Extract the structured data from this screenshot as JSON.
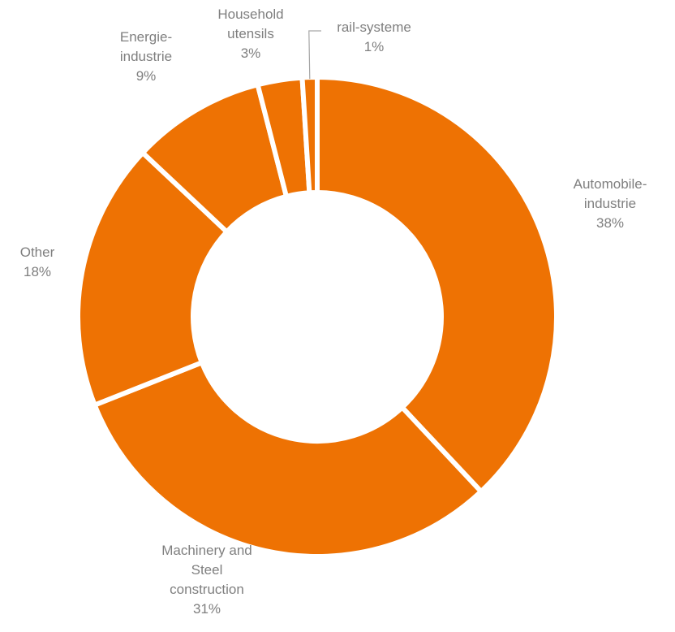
{
  "chart_data": {
    "type": "pie",
    "variant": "donut",
    "color": "#ee7203",
    "label_color": "#7f7f7f",
    "slices": [
      {
        "label": [
          "Automobile-",
          "industrie"
        ],
        "pct_text": "38%",
        "value": 38
      },
      {
        "label": [
          "Machinery and",
          "Steel",
          "construction"
        ],
        "pct_text": "31%",
        "value": 31
      },
      {
        "label": [
          "Other"
        ],
        "pct_text": "18%",
        "value": 18
      },
      {
        "label": [
          "Energie-",
          "industrie"
        ],
        "pct_text": "9%",
        "value": 9
      },
      {
        "label": [
          "Household",
          "utensils"
        ],
        "pct_text": "3%",
        "value": 3
      },
      {
        "label": [
          "rail-systeme"
        ],
        "pct_text": "1%",
        "value": 1
      }
    ]
  }
}
